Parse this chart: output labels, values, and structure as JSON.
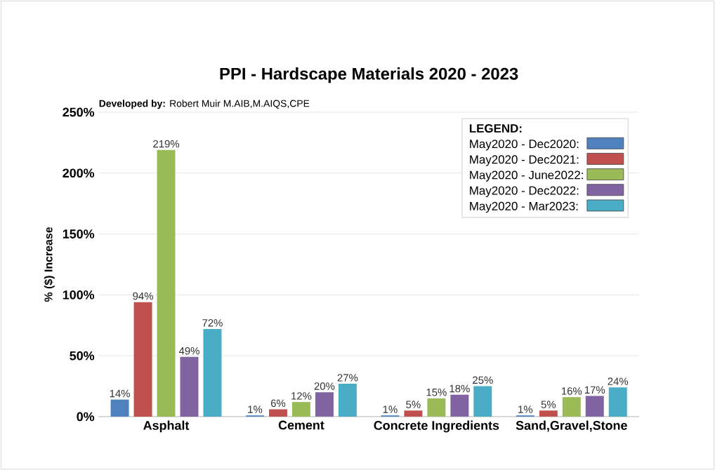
{
  "chart_data": {
    "type": "bar",
    "title": "PPI - Hardscape Materials 2020 - 2023",
    "subtitle": "**Developed by:** Robert Muir M.AIB,M.AIQS,CPE",
    "ylabel": "% ($) Increase",
    "legend_title": "LEGEND:",
    "categories": [
      "Asphalt",
      "Cement",
      "Concrete Ingredients",
      "Sand,Gravel,Stone"
    ],
    "series": [
      {
        "name": "May2020 - Dec2020:",
        "color": "#4f81bd",
        "values": [
          14,
          1,
          1,
          1
        ],
        "value_labels": [
          "14%",
          "1%",
          "1%",
          "1%"
        ]
      },
      {
        "name": "May2020 - Dec2021:",
        "color": "#c0504d",
        "values": [
          94,
          6,
          5,
          5
        ],
        "value_labels": [
          "94%",
          "6%",
          "5%",
          "5%"
        ]
      },
      {
        "name": "May2020 - June2022:",
        "color": "#9bbb59",
        "values": [
          219,
          12,
          15,
          16
        ],
        "value_labels": [
          "219%",
          "12%",
          "15%",
          "16%"
        ]
      },
      {
        "name": "May2020 - Dec2022:",
        "color": "#8064a2",
        "values": [
          49,
          20,
          18,
          17
        ],
        "value_labels": [
          "49%",
          "20%",
          "18%",
          "17%"
        ]
      },
      {
        "name": "May2020 - Mar2023:",
        "color": "#4bacc6",
        "values": [
          72,
          27,
          25,
          24
        ],
        "value_labels": [
          "72%",
          "27%",
          "25%",
          "24%"
        ]
      }
    ],
    "ylim": [
      0,
      250
    ],
    "yticks": [
      {
        "value": 0,
        "label": "0%"
      },
      {
        "value": 50,
        "label": "50%"
      },
      {
        "value": 100,
        "label": "100%"
      },
      {
        "value": 150,
        "label": "150%"
      },
      {
        "value": 200,
        "label": "200%"
      },
      {
        "value": 250,
        "label": "250%"
      }
    ],
    "grid": "y",
    "legend": "top right"
  }
}
